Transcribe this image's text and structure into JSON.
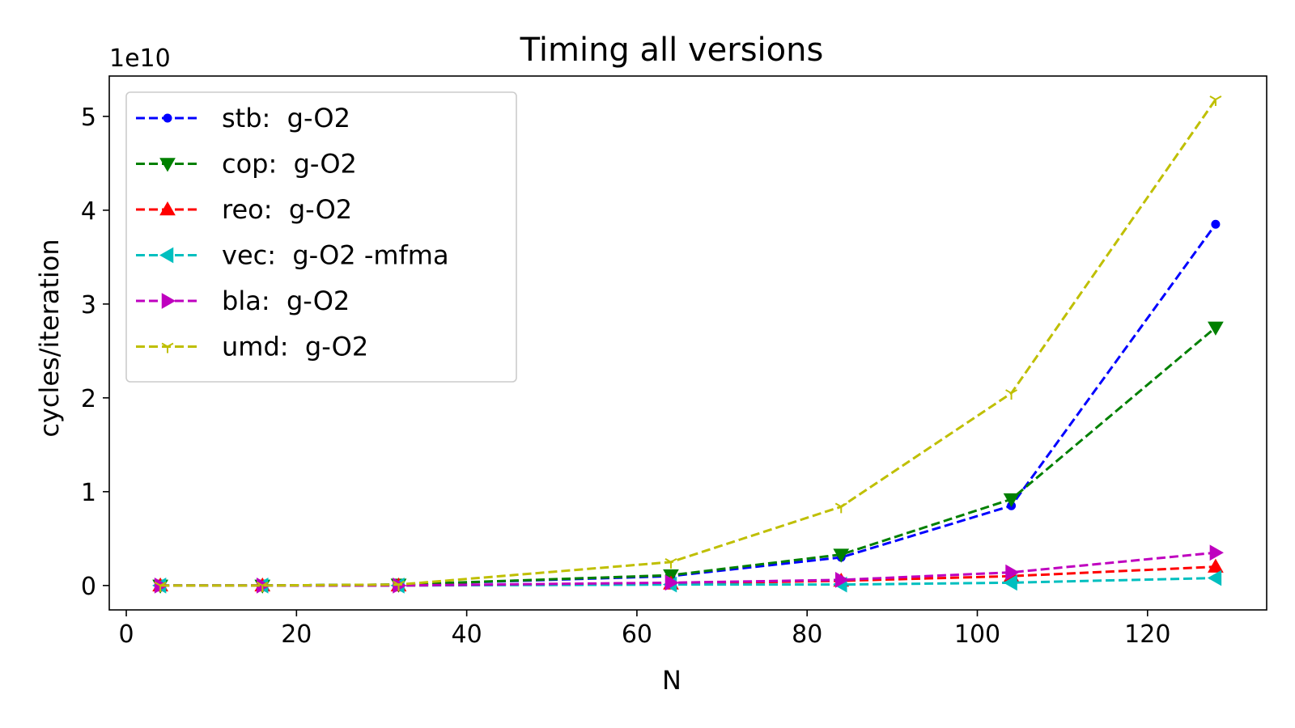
{
  "chart_data": {
    "type": "line",
    "title": "Timing all versions",
    "xlabel": "N",
    "ylabel": "cycles/iteration",
    "y_offset_label": "1e10",
    "xlim": [
      -2,
      134
    ],
    "ylim": [
      -0.26,
      5.43
    ],
    "xticks": [
      0,
      20,
      40,
      60,
      80,
      100,
      120
    ],
    "yticks": [
      0,
      1,
      2,
      3,
      4,
      5
    ],
    "grid": false,
    "legend_position": "upper-left",
    "x": [
      4,
      16,
      32,
      64,
      84,
      104,
      128
    ],
    "series": [
      {
        "name": "stb:  g-O2",
        "color": "#0000ff",
        "marker": "circle",
        "values": [
          0.0,
          0.0,
          0.01,
          0.1,
          0.3,
          0.85,
          3.85
        ]
      },
      {
        "name": "cop:  g-O2",
        "color": "#008000",
        "marker": "triangle-down",
        "values": [
          0.0,
          0.0,
          0.01,
          0.11,
          0.33,
          0.92,
          2.75
        ]
      },
      {
        "name": "reo:  g-O2",
        "color": "#ff0000",
        "marker": "triangle-up",
        "values": [
          0.0,
          0.0,
          0.0,
          0.02,
          0.05,
          0.1,
          0.2
        ]
      },
      {
        "name": "vec:  g-O2 -mfma",
        "color": "#00bfbf",
        "marker": "triangle-left",
        "values": [
          0.0,
          0.0,
          0.0,
          0.01,
          0.01,
          0.03,
          0.08
        ]
      },
      {
        "name": "bla:  g-O2",
        "color": "#bf00bf",
        "marker": "triangle-right",
        "values": [
          0.0,
          0.0,
          0.0,
          0.03,
          0.06,
          0.14,
          0.35
        ]
      },
      {
        "name": "umd:  g-O2",
        "color": "#bfbf00",
        "marker": "tri-down",
        "values": [
          0.0,
          0.0,
          0.01,
          0.25,
          0.84,
          2.05,
          5.18
        ]
      }
    ]
  }
}
